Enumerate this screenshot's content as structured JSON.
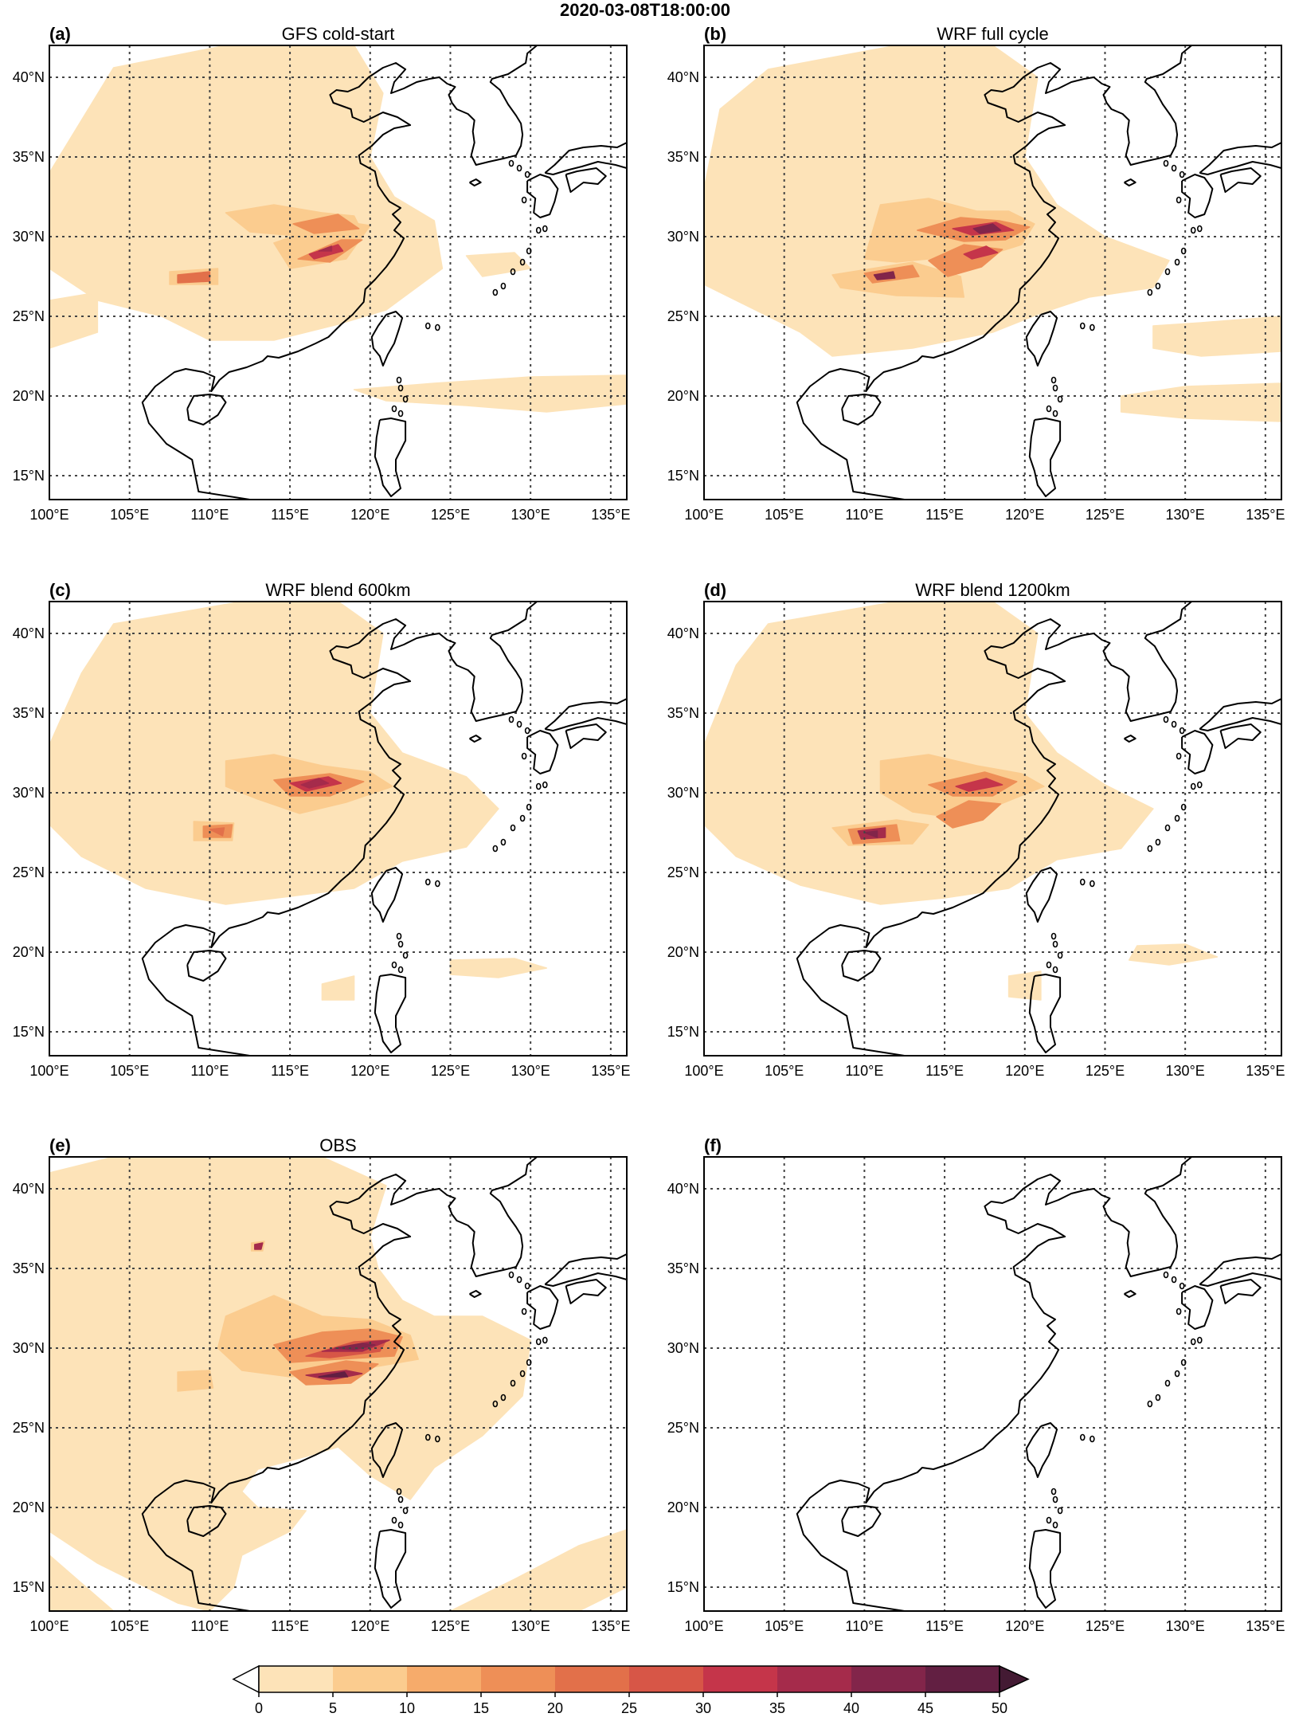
{
  "figure": {
    "title": "2020-03-08T18:00:00",
    "lon_ticks": [
      100,
      105,
      110,
      115,
      120,
      125,
      130,
      135
    ],
    "lat_ticks": [
      15,
      20,
      25,
      30,
      35,
      40
    ],
    "lon_labels": [
      "100°E",
      "105°E",
      "110°E",
      "115°E",
      "120°E",
      "125°E",
      "130°E",
      "135°E"
    ],
    "lat_labels": [
      "15°N",
      "20°N",
      "25°N",
      "30°N",
      "35°N",
      "40°N"
    ],
    "lon_range": [
      100,
      136
    ],
    "lat_range": [
      13.5,
      42
    ],
    "panels": [
      {
        "label": "(a)",
        "title": "GFS cold-start"
      },
      {
        "label": "(b)",
        "title": "WRF full cycle"
      },
      {
        "label": "(c)",
        "title": "WRF blend 600km"
      },
      {
        "label": "(d)",
        "title": "WRF blend 1200km"
      },
      {
        "label": "(e)",
        "title": "OBS"
      },
      {
        "label": "(f)",
        "title": ""
      }
    ]
  },
  "colorbar": {
    "levels": [
      0,
      5,
      10,
      15,
      20,
      25,
      30,
      35,
      40,
      45,
      50
    ],
    "labels": [
      "0",
      "5",
      "10",
      "15",
      "20",
      "25",
      "30",
      "35",
      "40",
      "45",
      "50"
    ],
    "colors": [
      "#fde3b8",
      "#fbcc8f",
      "#f6ab6b",
      "#ee8f57",
      "#e2704a",
      "#d75647",
      "#c5354a",
      "#a52b4b",
      "#82254a",
      "#621f42",
      "#431a33"
    ]
  }
}
